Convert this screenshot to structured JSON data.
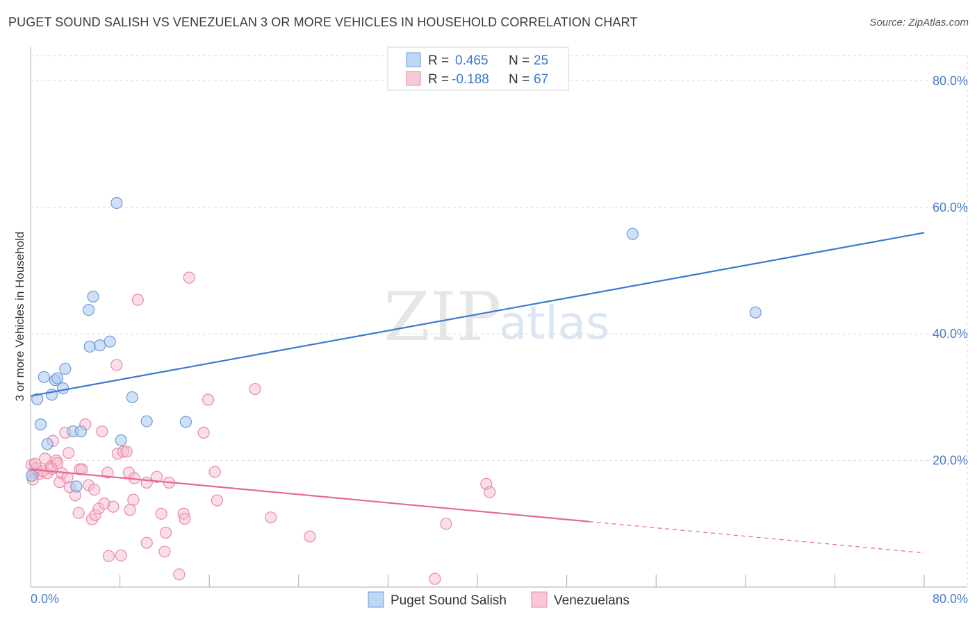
{
  "header": {
    "title": "PUGET SOUND SALISH VS VENEZUELAN 3 OR MORE VEHICLES IN HOUSEHOLD CORRELATION CHART",
    "source": "Source: ZipAtlas.com"
  },
  "watermark": {
    "zip": "ZIP",
    "atlas": "atlas"
  },
  "colors": {
    "blue": "#3b78d0",
    "blue_fill": "#a9c8f0",
    "pink": "#e8678f",
    "pink_fill": "#f6b6c9",
    "grid": "#d9d9d9",
    "tick_text": "#4a7cc9"
  },
  "legend": {
    "r_label": "R =",
    "n_label": "N =",
    "rows": [
      {
        "series": "Puget Sound Salish",
        "r": "0.465",
        "n": "25"
      },
      {
        "series": "Venezuelans",
        "r": "-0.188",
        "n": "67"
      }
    ]
  },
  "bottom_legend": [
    "Puget Sound Salish",
    "Venezuelans"
  ],
  "chart_data": {
    "type": "scatter",
    "title": "PUGET SOUND SALISH VS VENEZUELAN 3 OR MORE VEHICLES IN HOUSEHOLD CORRELATION CHART",
    "xlabel": "",
    "ylabel": "3 or more Vehicles in Household",
    "xlim": [
      0,
      80
    ],
    "ylim": [
      0,
      84
    ],
    "x_tick_labels": [
      "0.0%",
      "80.0%"
    ],
    "y_ticks": [
      20,
      40,
      60,
      80
    ],
    "y_tick_labels": [
      "20.0%",
      "40.0%",
      "60.0%",
      "80.0%"
    ],
    "grid": true,
    "series": [
      {
        "name": "Puget Sound Salish",
        "points": [
          [
            0.1,
            17.6
          ],
          [
            0.6,
            29.7
          ],
          [
            0.9,
            25.7
          ],
          [
            1.2,
            33.2
          ],
          [
            1.5,
            22.6
          ],
          [
            1.9,
            30.4
          ],
          [
            2.2,
            32.7
          ],
          [
            2.4,
            33.0
          ],
          [
            2.9,
            31.4
          ],
          [
            3.1,
            34.5
          ],
          [
            3.8,
            24.6
          ],
          [
            4.1,
            15.9
          ],
          [
            4.5,
            24.6
          ],
          [
            5.2,
            43.8
          ],
          [
            5.6,
            45.9
          ],
          [
            5.3,
            38.0
          ],
          [
            6.2,
            38.2
          ],
          [
            7.1,
            38.8
          ],
          [
            7.7,
            60.7
          ],
          [
            8.1,
            23.2
          ],
          [
            9.1,
            30.0
          ],
          [
            10.4,
            26.2
          ],
          [
            13.9,
            26.1
          ],
          [
            53.9,
            55.8
          ],
          [
            64.9,
            43.4
          ]
        ],
        "trend": {
          "x": [
            0,
            80
          ],
          "y": [
            30.2,
            56.0
          ]
        }
      },
      {
        "name": "Venezuelans",
        "points": [
          [
            0.1,
            19.3
          ],
          [
            0.3,
            18.1
          ],
          [
            0.5,
            18.8
          ],
          [
            0.8,
            17.9
          ],
          [
            1.1,
            18.3
          ],
          [
            1.3,
            20.3
          ],
          [
            1.5,
            18.0
          ],
          [
            1.8,
            19.0
          ],
          [
            2.0,
            23.1
          ],
          [
            2.3,
            20.0
          ],
          [
            2.6,
            16.6
          ],
          [
            2.8,
            18.0
          ],
          [
            3.1,
            24.4
          ],
          [
            3.3,
            17.3
          ],
          [
            3.4,
            21.2
          ],
          [
            3.5,
            15.8
          ],
          [
            4.3,
            11.7
          ],
          [
            4.4,
            18.6
          ],
          [
            4.6,
            18.6
          ],
          [
            4.9,
            25.7
          ],
          [
            5.2,
            16.1
          ],
          [
            5.5,
            10.7
          ],
          [
            5.7,
            15.4
          ],
          [
            5.8,
            11.4
          ],
          [
            6.1,
            12.4
          ],
          [
            6.4,
            24.6
          ],
          [
            6.6,
            13.2
          ],
          [
            6.9,
            18.1
          ],
          [
            7.0,
            4.9
          ],
          [
            7.4,
            12.7
          ],
          [
            7.7,
            35.1
          ],
          [
            7.8,
            21.1
          ],
          [
            8.1,
            5.0
          ],
          [
            8.3,
            21.4
          ],
          [
            8.6,
            21.4
          ],
          [
            8.8,
            18.1
          ],
          [
            8.9,
            12.2
          ],
          [
            9.2,
            13.8
          ],
          [
            9.3,
            17.2
          ],
          [
            9.6,
            45.4
          ],
          [
            10.4,
            16.5
          ],
          [
            10.4,
            7.0
          ],
          [
            11.3,
            17.4
          ],
          [
            11.7,
            11.6
          ],
          [
            12.0,
            5.6
          ],
          [
            12.1,
            8.6
          ],
          [
            12.4,
            16.5
          ],
          [
            13.3,
            2.0
          ],
          [
            13.7,
            11.6
          ],
          [
            13.8,
            10.8
          ],
          [
            14.2,
            48.9
          ],
          [
            15.5,
            24.4
          ],
          [
            15.9,
            29.6
          ],
          [
            16.5,
            18.2
          ],
          [
            16.7,
            13.7
          ],
          [
            20.1,
            31.3
          ],
          [
            21.5,
            11.0
          ],
          [
            25.0,
            8.0
          ],
          [
            36.2,
            1.3
          ],
          [
            37.2,
            10.0
          ],
          [
            40.8,
            16.3
          ],
          [
            41.1,
            15.0
          ],
          [
            0.2,
            17.0
          ],
          [
            0.4,
            19.5
          ],
          [
            1.9,
            18.7
          ],
          [
            4.0,
            14.5
          ],
          [
            2.4,
            19.6
          ]
        ],
        "trend": {
          "x": [
            0,
            80
          ],
          "y": [
            18.6,
            5.4
          ],
          "solid_until_x": 50
        }
      }
    ]
  }
}
